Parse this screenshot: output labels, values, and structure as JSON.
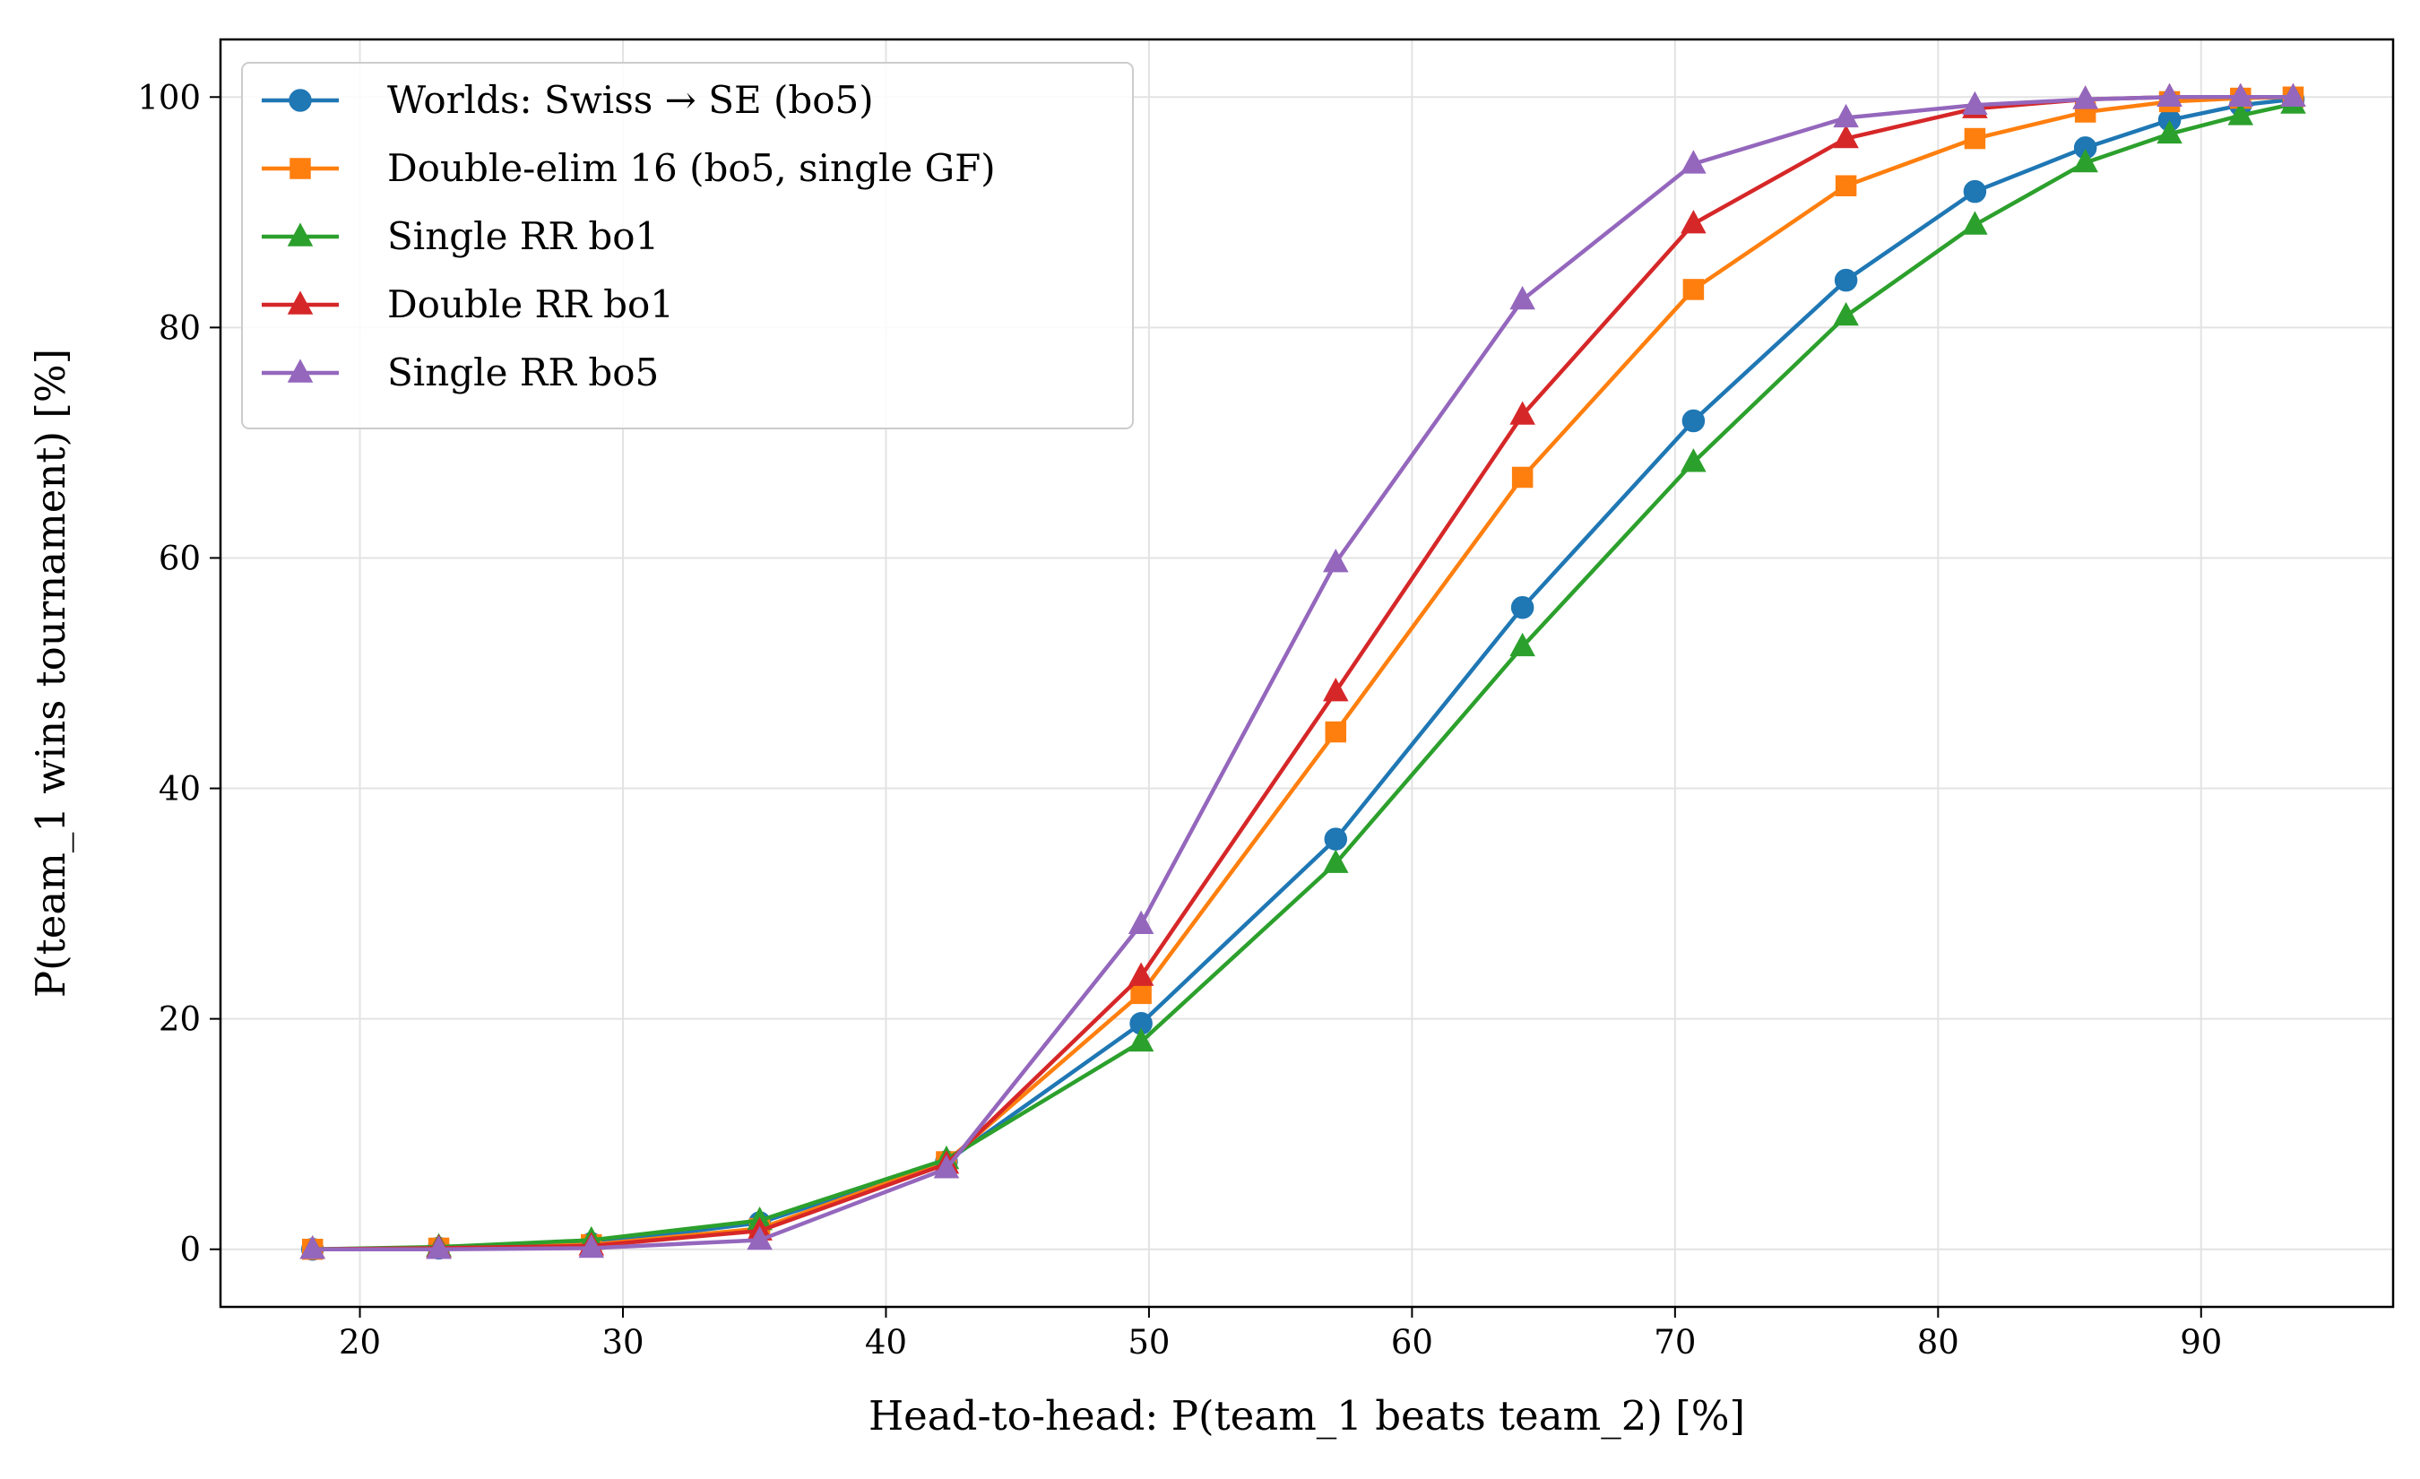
{
  "chart_data": {
    "type": "line",
    "title": "",
    "xlabel": "Head-to-head: P(team_1 beats team_2) [%]",
    "ylabel": "P(team_1 wins tournament) [%]",
    "xlim": [
      14.7,
      97.3
    ],
    "ylim": [
      -5,
      105
    ],
    "xticks": [
      20,
      30,
      40,
      50,
      60,
      70,
      80,
      90
    ],
    "yticks": [
      0,
      20,
      40,
      60,
      80,
      100
    ],
    "grid": true,
    "legend_position": "top-left",
    "x": [
      18.2,
      23.0,
      28.8,
      35.2,
      42.3,
      49.7,
      57.1,
      64.2,
      70.7,
      76.5,
      81.4,
      85.6,
      88.8,
      91.5,
      93.5
    ],
    "series": [
      {
        "name": "Worlds: Swiss → SE (bo5)",
        "color": "#1f77b4",
        "marker": "circle",
        "values": [
          0.0,
          0.1,
          0.5,
          2.3,
          7.6,
          19.6,
          35.6,
          55.7,
          71.9,
          84.1,
          91.8,
          95.6,
          98.0,
          99.3,
          99.8
        ]
      },
      {
        "name": "Double-elim 16 (bo5, single GF)",
        "color": "#ff7f0e",
        "marker": "square",
        "values": [
          0.0,
          0.1,
          0.4,
          1.8,
          7.6,
          22.2,
          44.9,
          67.0,
          83.3,
          92.3,
          96.4,
          98.7,
          99.6,
          99.9,
          100.0
        ]
      },
      {
        "name": "Single RR bo1",
        "color": "#2ca02c",
        "marker": "triangle",
        "values": [
          0.0,
          0.2,
          0.8,
          2.5,
          7.8,
          18.0,
          33.5,
          52.3,
          68.3,
          81.0,
          88.9,
          94.3,
          96.8,
          98.4,
          99.4
        ]
      },
      {
        "name": "Double RR bo1",
        "color": "#d62728",
        "marker": "triangle",
        "values": [
          0.0,
          0.1,
          0.3,
          1.6,
          7.4,
          23.7,
          48.4,
          72.4,
          89.0,
          96.4,
          99.0,
          99.8,
          100.0,
          100.0,
          100.0
        ]
      },
      {
        "name": "Single RR bo5",
        "color": "#9467bd",
        "marker": "triangle",
        "values": [
          0.0,
          0.0,
          0.1,
          0.8,
          7.0,
          28.2,
          59.6,
          82.4,
          94.2,
          98.2,
          99.3,
          99.8,
          100.0,
          100.0,
          100.0
        ]
      }
    ]
  }
}
